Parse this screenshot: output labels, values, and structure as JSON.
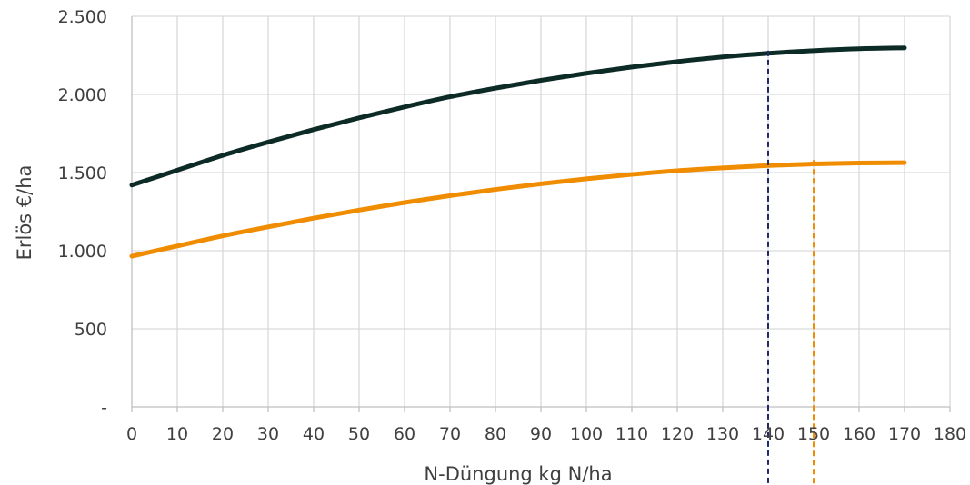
{
  "chart_data": {
    "type": "line",
    "xlabel": "N-Düngung kg N/ha",
    "ylabel": "Erlös €/ha",
    "xlim": [
      0,
      180
    ],
    "ylim": [
      0,
      2500
    ],
    "x_ticks": [
      0,
      10,
      20,
      30,
      40,
      50,
      60,
      70,
      80,
      90,
      100,
      110,
      120,
      130,
      140,
      150,
      160,
      170,
      180
    ],
    "x_tick_labels": [
      "0",
      "10",
      "20",
      "30",
      "40",
      "50",
      "60",
      "70",
      "80",
      "90",
      "100",
      "110",
      "120",
      "130",
      "140",
      "150",
      "160",
      "170",
      "180"
    ],
    "y_ticks": [
      0,
      500,
      1000,
      1500,
      2000,
      2500
    ],
    "y_tick_labels": [
      "-",
      "500",
      "1.000",
      "1.500",
      "2.000",
      "2.500"
    ],
    "grid": true,
    "legend": "none",
    "series": [
      {
        "color": "#0d2b26",
        "x": [
          0,
          10,
          20,
          30,
          40,
          50,
          60,
          70,
          80,
          90,
          100,
          110,
          120,
          130,
          140,
          150,
          160,
          170
        ],
        "values": [
          1420,
          1515,
          1610,
          1695,
          1775,
          1850,
          1920,
          1985,
          2040,
          2090,
          2135,
          2175,
          2210,
          2240,
          2263,
          2280,
          2292,
          2298
        ]
      },
      {
        "color": "#f08c00",
        "x": [
          0,
          10,
          20,
          30,
          40,
          50,
          60,
          70,
          80,
          90,
          100,
          110,
          120,
          130,
          140,
          150,
          160,
          170
        ],
        "values": [
          965,
          1030,
          1095,
          1152,
          1208,
          1260,
          1308,
          1352,
          1392,
          1428,
          1460,
          1488,
          1512,
          1530,
          1545,
          1555,
          1561,
          1563
        ]
      }
    ],
    "vertical_markers": [
      {
        "x": 140,
        "color": "#1f2a6b",
        "style": "dashed"
      },
      {
        "x": 150,
        "color": "#f08c00",
        "style": "dashed"
      }
    ]
  }
}
